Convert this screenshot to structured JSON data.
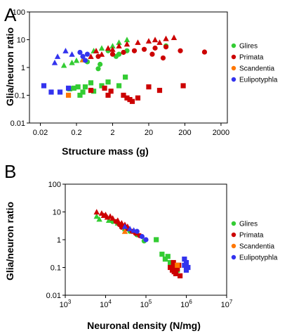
{
  "colors": {
    "Glires": "#33cc33",
    "Primata": "#cc0000",
    "Scandentia": "#ff7700",
    "Eulipotyphla": "#3333ee"
  },
  "chart_data": [
    {
      "type": "scatter",
      "panel_label": "A",
      "xlabel": "Structure mass (g)",
      "ylabel": "Glia/neuron ratio",
      "xscale": "log",
      "yscale": "log",
      "xlim": [
        0.01,
        3000
      ],
      "ylim": [
        0.01,
        100
      ],
      "x_ticks": [
        0.02,
        0.2,
        2,
        20,
        200,
        2000
      ],
      "x_tick_labels": [
        "0.02",
        "0.2",
        "2",
        "20",
        "200",
        "2000"
      ],
      "y_ticks": [
        0.01,
        0.1,
        1,
        10,
        100
      ],
      "y_tick_labels": [
        "0.01",
        "0.1",
        "1",
        "10",
        "100"
      ],
      "legend_position": "right",
      "legend": [
        "Glires",
        "Primata",
        "Scandentia",
        "Eulipotyphla"
      ],
      "series": [
        {
          "name": "Glires",
          "points": [
            {
              "x": 0.13,
              "y": 0.17,
              "m": "s"
            },
            {
              "x": 0.17,
              "y": 0.18,
              "m": "s"
            },
            {
              "x": 0.22,
              "y": 0.2,
              "m": "s"
            },
            {
              "x": 0.35,
              "y": 0.2,
              "m": "s"
            },
            {
              "x": 0.5,
              "y": 0.28,
              "m": "s"
            },
            {
              "x": 1.0,
              "y": 0.22,
              "m": "s"
            },
            {
              "x": 1.5,
              "y": 0.3,
              "m": "s"
            },
            {
              "x": 4.5,
              "y": 0.45,
              "m": "s"
            },
            {
              "x": 0.25,
              "y": 0.1,
              "m": "s"
            },
            {
              "x": 0.6,
              "y": 0.14,
              "m": "s"
            },
            {
              "x": 3.0,
              "y": 0.22,
              "m": "s"
            },
            {
              "x": 0.3,
              "y": 0.13,
              "m": "s"
            },
            {
              "x": 0.09,
              "y": 1.2,
              "m": "t"
            },
            {
              "x": 0.15,
              "y": 1.5,
              "m": "t"
            },
            {
              "x": 0.3,
              "y": 2.0,
              "m": "t"
            },
            {
              "x": 0.6,
              "y": 4.0,
              "m": "t"
            },
            {
              "x": 1.0,
              "y": 5.0,
              "m": "t"
            },
            {
              "x": 2.0,
              "y": 6.0,
              "m": "t"
            },
            {
              "x": 3.0,
              "y": 8.0,
              "m": "t"
            },
            {
              "x": 5.0,
              "y": 10.0,
              "m": "t"
            },
            {
              "x": 0.2,
              "y": 1.8,
              "m": "t"
            },
            {
              "x": 0.8,
              "y": 0.9,
              "m": "c"
            },
            {
              "x": 1.5,
              "y": 4.0,
              "m": "c"
            },
            {
              "x": 3.0,
              "y": 3.0,
              "m": "c"
            },
            {
              "x": 5.0,
              "y": 4.0,
              "m": "c"
            },
            {
              "x": 0.9,
              "y": 1.3,
              "m": "c"
            },
            {
              "x": 2.5,
              "y": 2.5,
              "m": "c"
            },
            {
              "x": 60.0,
              "y": 6.0,
              "m": "c"
            },
            {
              "x": 0.4,
              "y": 1.6,
              "m": "c"
            }
          ]
        },
        {
          "name": "Primata",
          "points": [
            {
              "x": 0.5,
              "y": 0.15,
              "m": "s"
            },
            {
              "x": 1.2,
              "y": 0.18,
              "m": "s"
            },
            {
              "x": 1.5,
              "y": 0.1,
              "m": "s"
            },
            {
              "x": 1.8,
              "y": 0.14,
              "m": "s"
            },
            {
              "x": 4.0,
              "y": 0.1,
              "m": "s"
            },
            {
              "x": 5.0,
              "y": 0.08,
              "m": "s"
            },
            {
              "x": 6.0,
              "y": 0.07,
              "m": "s"
            },
            {
              "x": 7.0,
              "y": 0.06,
              "m": "s"
            },
            {
              "x": 10.0,
              "y": 0.08,
              "m": "s"
            },
            {
              "x": 20.0,
              "y": 0.2,
              "m": "s"
            },
            {
              "x": 40.0,
              "y": 0.15,
              "m": "s"
            },
            {
              "x": 180.0,
              "y": 0.22,
              "m": "s"
            },
            {
              "x": 0.5,
              "y": 2.5,
              "m": "t"
            },
            {
              "x": 0.7,
              "y": 4.0,
              "m": "t"
            },
            {
              "x": 1.0,
              "y": 3.0,
              "m": "t"
            },
            {
              "x": 1.5,
              "y": 5.0,
              "m": "t"
            },
            {
              "x": 3.0,
              "y": 6.0,
              "m": "t"
            },
            {
              "x": 5.0,
              "y": 7.0,
              "m": "t"
            },
            {
              "x": 10.0,
              "y": 8.0,
              "m": "t"
            },
            {
              "x": 20.0,
              "y": 9.0,
              "m": "t"
            },
            {
              "x": 30.0,
              "y": 10.0,
              "m": "t"
            },
            {
              "x": 60.0,
              "y": 11.0,
              "m": "t"
            },
            {
              "x": 100.0,
              "y": 12.0,
              "m": "t"
            },
            {
              "x": 40.0,
              "y": 8.0,
              "m": "t"
            },
            {
              "x": 2.0,
              "y": 4.5,
              "m": "t"
            },
            {
              "x": 0.8,
              "y": 2.5,
              "m": "c"
            },
            {
              "x": 2.0,
              "y": 3.0,
              "m": "c"
            },
            {
              "x": 4.0,
              "y": 3.5,
              "m": "c"
            },
            {
              "x": 8.0,
              "y": 4.0,
              "m": "c"
            },
            {
              "x": 15.0,
              "y": 4.5,
              "m": "c"
            },
            {
              "x": 30.0,
              "y": 5.0,
              "m": "c"
            },
            {
              "x": 60.0,
              "y": 5.5,
              "m": "c"
            },
            {
              "x": 150.0,
              "y": 4.0,
              "m": "c"
            },
            {
              "x": 700.0,
              "y": 3.6,
              "m": "c"
            },
            {
              "x": 25.0,
              "y": 3.0,
              "m": "c"
            },
            {
              "x": 50.0,
              "y": 2.2,
              "m": "c"
            }
          ]
        },
        {
          "name": "Scandentia",
          "points": [
            {
              "x": 0.12,
              "y": 0.1,
              "m": "s"
            },
            {
              "x": 0.3,
              "y": 1.9,
              "m": "t"
            }
          ]
        },
        {
          "name": "Eulipotyphla",
          "points": [
            {
              "x": 0.025,
              "y": 0.22,
              "m": "s"
            },
            {
              "x": 0.04,
              "y": 0.13,
              "m": "s"
            },
            {
              "x": 0.07,
              "y": 0.13,
              "m": "s"
            },
            {
              "x": 0.12,
              "y": 0.18,
              "m": "s"
            },
            {
              "x": 0.05,
              "y": 1.5,
              "m": "t"
            },
            {
              "x": 0.06,
              "y": 2.5,
              "m": "t"
            },
            {
              "x": 0.1,
              "y": 4.0,
              "m": "t"
            },
            {
              "x": 0.15,
              "y": 3.0,
              "m": "t"
            },
            {
              "x": 0.3,
              "y": 2.5,
              "m": "c"
            },
            {
              "x": 0.35,
              "y": 1.8,
              "m": "c"
            },
            {
              "x": 0.25,
              "y": 3.5,
              "m": "c"
            },
            {
              "x": 0.4,
              "y": 3.0,
              "m": "c"
            }
          ]
        }
      ]
    },
    {
      "type": "scatter",
      "panel_label": "B",
      "xlabel": "Neuronal density (N/mg)",
      "ylabel": "Glia/neuron ratio",
      "xscale": "log",
      "yscale": "log",
      "xlim": [
        1000,
        10000000
      ],
      "ylim": [
        0.01,
        100
      ],
      "x_ticks": [
        1000,
        10000,
        100000,
        1000000,
        10000000
      ],
      "x_tick_labels": [
        [
          "10",
          "3"
        ],
        [
          "10",
          "4"
        ],
        [
          "10",
          "5"
        ],
        [
          "10",
          "6"
        ],
        [
          "10",
          "7"
        ]
      ],
      "y_ticks": [
        0.01,
        0.1,
        1,
        10,
        100
      ],
      "y_tick_labels": [
        "0.01",
        "0.1",
        "1",
        "10",
        "100"
      ],
      "legend_position": "right",
      "legend": [
        "Glires",
        "Primata",
        "Scandentia",
        "Eulipotyphla"
      ],
      "series": [
        {
          "name": "Glires",
          "points": [
            {
              "x": 6000,
              "y": 7.0,
              "m": "t"
            },
            {
              "x": 7000,
              "y": 5.5,
              "m": "t"
            },
            {
              "x": 12000,
              "y": 5.0,
              "m": "t"
            },
            {
              "x": 20000,
              "y": 4.0,
              "m": "t"
            },
            {
              "x": 30000,
              "y": 2.5,
              "m": "t"
            },
            {
              "x": 15000,
              "y": 4.5,
              "m": "c"
            },
            {
              "x": 40000,
              "y": 2.0,
              "m": "c"
            },
            {
              "x": 60000,
              "y": 1.5,
              "m": "c"
            },
            {
              "x": 90000,
              "y": 0.9,
              "m": "c"
            },
            {
              "x": 180000,
              "y": 1.0,
              "m": "s"
            },
            {
              "x": 250000,
              "y": 0.3,
              "m": "s"
            },
            {
              "x": 300000,
              "y": 0.2,
              "m": "s"
            },
            {
              "x": 400000,
              "y": 0.15,
              "m": "s"
            },
            {
              "x": 500000,
              "y": 0.1,
              "m": "s"
            },
            {
              "x": 550000,
              "y": 0.06,
              "m": "s"
            },
            {
              "x": 600000,
              "y": 0.08,
              "m": "s"
            },
            {
              "x": 350000,
              "y": 0.25,
              "m": "s"
            }
          ]
        },
        {
          "name": "Primata",
          "points": [
            {
              "x": 6000,
              "y": 10.0,
              "m": "t"
            },
            {
              "x": 8000,
              "y": 9.0,
              "m": "t"
            },
            {
              "x": 10000,
              "y": 8.0,
              "m": "t"
            },
            {
              "x": 13000,
              "y": 7.0,
              "m": "t"
            },
            {
              "x": 15000,
              "y": 6.0,
              "m": "t"
            },
            {
              "x": 20000,
              "y": 5.0,
              "m": "t"
            },
            {
              "x": 25000,
              "y": 4.0,
              "m": "t"
            },
            {
              "x": 30000,
              "y": 3.5,
              "m": "t"
            },
            {
              "x": 35000,
              "y": 3.0,
              "m": "t"
            },
            {
              "x": 9000,
              "y": 7.5,
              "m": "t"
            },
            {
              "x": 11000,
              "y": 6.5,
              "m": "t"
            },
            {
              "x": 18000,
              "y": 4.5,
              "m": "c"
            },
            {
              "x": 22000,
              "y": 3.5,
              "m": "c"
            },
            {
              "x": 28000,
              "y": 3.0,
              "m": "c"
            },
            {
              "x": 35000,
              "y": 2.5,
              "m": "c"
            },
            {
              "x": 45000,
              "y": 2.0,
              "m": "c"
            },
            {
              "x": 55000,
              "y": 1.7,
              "m": "c"
            },
            {
              "x": 70000,
              "y": 1.4,
              "m": "c"
            },
            {
              "x": 25000,
              "y": 2.8,
              "m": "c"
            },
            {
              "x": 400000,
              "y": 0.1,
              "m": "s"
            },
            {
              "x": 450000,
              "y": 0.08,
              "m": "s"
            },
            {
              "x": 500000,
              "y": 0.07,
              "m": "s"
            },
            {
              "x": 550000,
              "y": 0.06,
              "m": "s"
            },
            {
              "x": 600000,
              "y": 0.09,
              "m": "s"
            },
            {
              "x": 650000,
              "y": 0.12,
              "m": "s"
            },
            {
              "x": 700000,
              "y": 0.05,
              "m": "s"
            },
            {
              "x": 480000,
              "y": 0.15,
              "m": "s"
            },
            {
              "x": 520000,
              "y": 0.11,
              "m": "s"
            }
          ]
        },
        {
          "name": "Scandentia",
          "points": [
            {
              "x": 30000,
              "y": 2.0,
              "m": "t"
            },
            {
              "x": 600000,
              "y": 0.12,
              "m": "s"
            }
          ]
        },
        {
          "name": "Eulipotyphla",
          "points": [
            {
              "x": 30000,
              "y": 3.0,
              "m": "t"
            },
            {
              "x": 40000,
              "y": 2.5,
              "m": "t"
            },
            {
              "x": 50000,
              "y": 2.2,
              "m": "t"
            },
            {
              "x": 60000,
              "y": 2.0,
              "m": "c"
            },
            {
              "x": 80000,
              "y": 1.3,
              "m": "c"
            },
            {
              "x": 100000,
              "y": 1.0,
              "m": "c"
            },
            {
              "x": 900000,
              "y": 0.2,
              "m": "s"
            },
            {
              "x": 1000000,
              "y": 0.15,
              "m": "s"
            },
            {
              "x": 1100000,
              "y": 0.1,
              "m": "s"
            },
            {
              "x": 1000000,
              "y": 0.08,
              "m": "s"
            },
            {
              "x": 900000,
              "y": 0.12,
              "m": "s"
            }
          ]
        }
      ]
    }
  ]
}
